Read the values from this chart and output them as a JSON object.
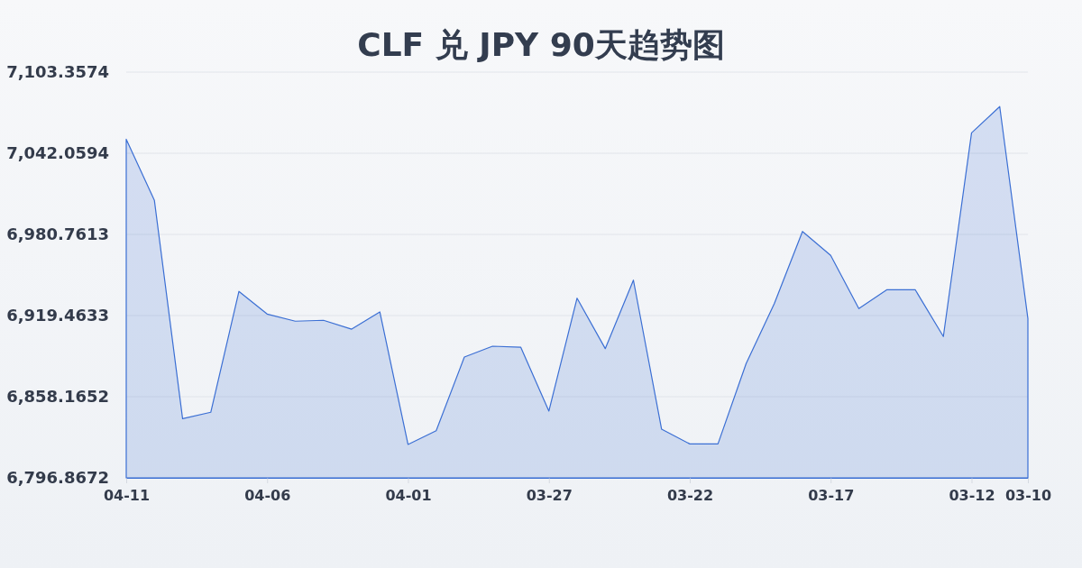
{
  "chart_data": {
    "type": "area",
    "title": "CLF 兑 JPY 90天趋势图",
    "categories": [
      "04-11",
      null,
      null,
      null,
      null,
      "04-06",
      null,
      null,
      null,
      null,
      "04-01",
      null,
      null,
      null,
      null,
      "03-27",
      null,
      null,
      null,
      null,
      "03-22",
      null,
      null,
      null,
      null,
      "03-17",
      null,
      null,
      null,
      null,
      "03-12",
      null,
      "03-10"
    ],
    "series": [
      {
        "color": "#3b6fd4",
        "values": [
          7052.7,
          7006.4,
          6841.6,
          6846.4,
          6937.7,
          6920.6,
          6915.2,
          6915.9,
          6909.2,
          6922.2,
          6822.1,
          6832.5,
          6888.1,
          6896.3,
          6895.6,
          6847.3,
          6932.6,
          6894.5,
          6946.2,
          6833.6,
          6822.5,
          6822.5,
          6883.2,
          6928.5,
          6983.0,
          6964.9,
          6924.7,
          6939.0,
          6939.0,
          6903.6,
          7057.5,
          7077.3,
          6917.2
        ]
      }
    ],
    "ylim": [
      6796.8672,
      7103.3574
    ],
    "yticks": [
      {
        "value": 6796.8672,
        "label": "6,796.8672"
      },
      {
        "value": 6858.1652,
        "label": "6,858.1652"
      },
      {
        "value": 6919.4633,
        "label": "6,919.4633"
      },
      {
        "value": 6980.7613,
        "label": "6,980.7613"
      },
      {
        "value": 7042.0594,
        "label": "7,042.0594"
      },
      {
        "value": 7103.3574,
        "label": "7,103.3574"
      }
    ],
    "grid": "y"
  }
}
